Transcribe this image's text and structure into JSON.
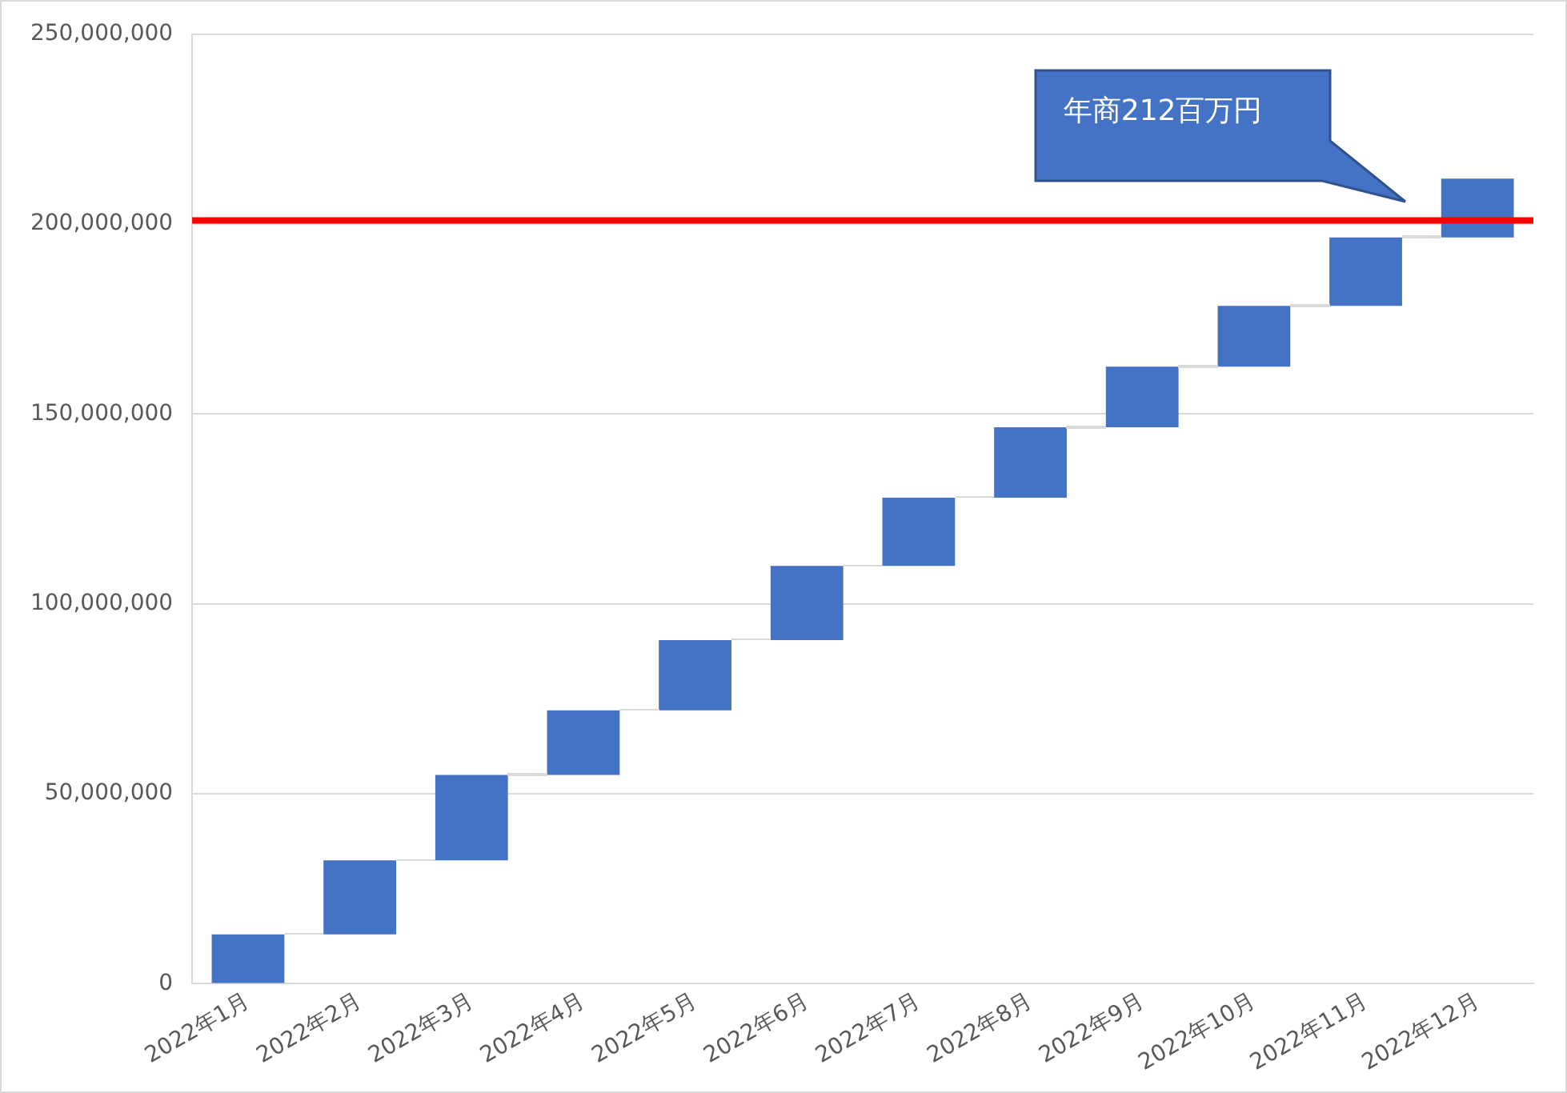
{
  "chart_data": {
    "type": "bar",
    "categories": [
      "2022年1月",
      "2022年2月",
      "2022年3月",
      "2022年4月",
      "2022年5月",
      "2022年6月",
      "2022年7月",
      "2022年8月",
      "2022年9月",
      "2022年10月",
      "2022年11月",
      "2022年12月"
    ],
    "base": [
      0,
      13000000,
      32500000,
      55000000,
      72000000,
      90500000,
      110000000,
      128000000,
      146500000,
      162500000,
      178500000,
      196500000
    ],
    "values": [
      13000000,
      19500000,
      22500000,
      17000000,
      18500000,
      19500000,
      18000000,
      18500000,
      16000000,
      16000000,
      18000000,
      15500000
    ],
    "color": "#4472c4",
    "ylim": [
      0,
      250000000
    ],
    "yticks": [
      {
        "value": 0,
        "label": "0"
      },
      {
        "value": 50000000,
        "label": "50,000,000"
      },
      {
        "value": 100000000,
        "label": "100,000,000"
      },
      {
        "value": 150000000,
        "label": "150,000,000"
      },
      {
        "value": 200000000,
        "label": "200,000,000"
      },
      {
        "value": 250000000,
        "label": "250,000,000"
      }
    ],
    "grid": "y",
    "legend": false,
    "ref_lines": [
      {
        "axis": "y",
        "value": 201000000,
        "color": "#ff0000"
      }
    ],
    "annotations": [
      "年商212百万円"
    ]
  }
}
